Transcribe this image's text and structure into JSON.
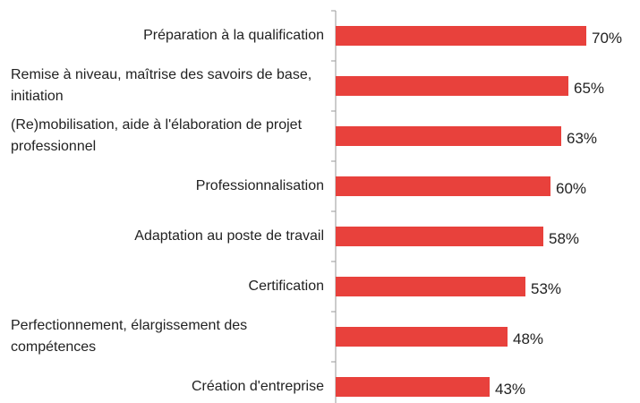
{
  "chart_data": {
    "type": "bar",
    "orientation": "horizontal",
    "categories": [
      "Préparation à la qualification",
      "Remise à niveau, maîtrise des savoirs de base, initiation",
      "(Re)mobilisation, aide à l'élaboration de projet professionnel",
      "Professionnalisation",
      "Adaptation au poste de travail",
      "Certification",
      "Perfectionnement, élargissement des compétences",
      "Création d'entreprise"
    ],
    "values": [
      70,
      65,
      63,
      60,
      58,
      53,
      48,
      43
    ],
    "value_labels": [
      "70%",
      "65%",
      "63%",
      "60%",
      "58%",
      "53%",
      "48%",
      "43%"
    ],
    "color": "#e8413c"
  }
}
